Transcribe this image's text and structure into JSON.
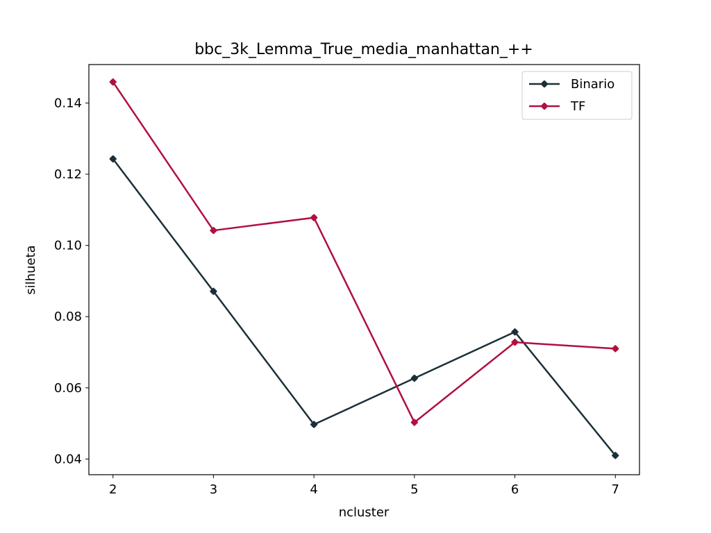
{
  "chart_data": {
    "type": "line",
    "title": "bbc_3k_Lemma_True_media_manhattan_++",
    "xlabel": "ncluster",
    "ylabel": "silhueta",
    "x": [
      2,
      3,
      4,
      5,
      6,
      7
    ],
    "xticks": [
      "2",
      "3",
      "4",
      "5",
      "6",
      "7"
    ],
    "yticks": [
      "0.04",
      "0.06",
      "0.08",
      "0.10",
      "0.12",
      "0.14"
    ],
    "xlim": [
      1.76,
      7.24
    ],
    "ylim": [
      0.0356,
      0.1508
    ],
    "grid": false,
    "legend_position": "upper right",
    "series": [
      {
        "name": "Binario",
        "color": "#1b2f38",
        "values": [
          0.1243,
          0.0871,
          0.0497,
          0.0627,
          0.0757,
          0.041
        ]
      },
      {
        "name": "TF",
        "color": "#b0103f",
        "values": [
          0.1459,
          0.1042,
          0.1078,
          0.0503,
          0.0728,
          0.071
        ]
      }
    ]
  }
}
